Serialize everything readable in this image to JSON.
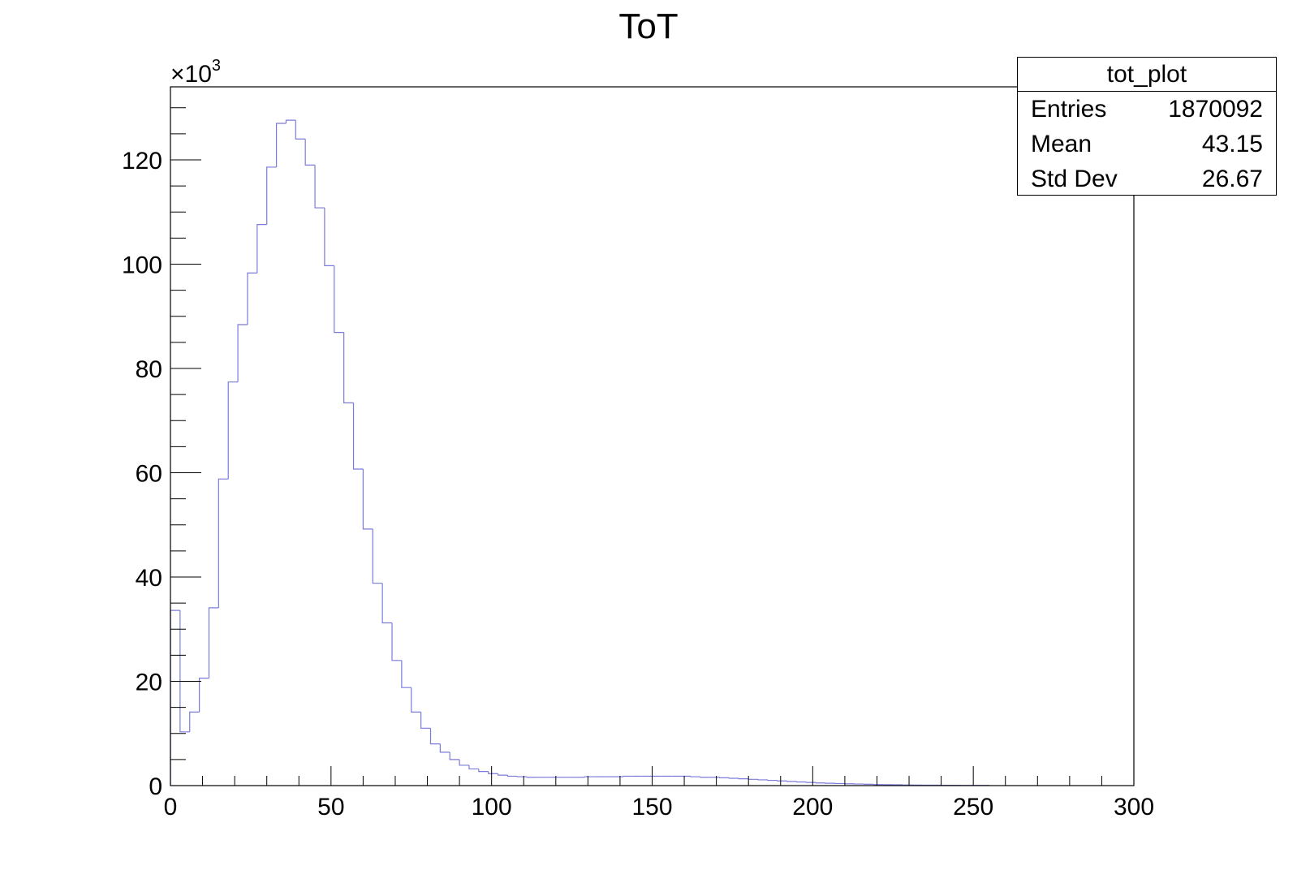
{
  "chart_data": {
    "type": "histogram",
    "title": "ToT",
    "xlabel": "",
    "ylabel": "",
    "y_multiplier_label": "×10",
    "y_multiplier_exponent": "3",
    "xlim": [
      0,
      300
    ],
    "ylim": [
      0,
      134
    ],
    "x_ticks": [
      0,
      50,
      100,
      150,
      200,
      250,
      300
    ],
    "y_ticks": [
      0,
      20,
      40,
      60,
      80,
      100,
      120
    ],
    "x_tick_labels": [
      "0",
      "50",
      "100",
      "150",
      "200",
      "250",
      "300"
    ],
    "y_tick_labels": [
      "0",
      "20",
      "40",
      "60",
      "80",
      "100",
      "120"
    ],
    "bin_width": 3,
    "bin_start": 0,
    "values": [
      33.6,
      10.3,
      14.1,
      20.6,
      34.1,
      58.8,
      77.4,
      88.4,
      98.3,
      107.6,
      118.6,
      127.0,
      127.6,
      124.0,
      119.0,
      110.8,
      99.7,
      86.9,
      73.4,
      60.7,
      49.2,
      38.8,
      31.2,
      24.0,
      18.8,
      14.1,
      11.0,
      8.0,
      6.4,
      5.0,
      3.9,
      3.2,
      2.7,
      2.3,
      2.0,
      1.8,
      1.7,
      1.6,
      1.6,
      1.6,
      1.6,
      1.6,
      1.6,
      1.7,
      1.7,
      1.7,
      1.7,
      1.8,
      1.8,
      1.8,
      1.8,
      1.8,
      1.8,
      1.8,
      1.7,
      1.6,
      1.6,
      1.5,
      1.4,
      1.3,
      1.2,
      1.1,
      1.0,
      0.9,
      0.8,
      0.7,
      0.6,
      0.5,
      0.45,
      0.4,
      0.35,
      0.3,
      0.25,
      0.2,
      0.18,
      0.15,
      0.12,
      0.1,
      0.09,
      0.08,
      0.07,
      0.06,
      0.05,
      0.05,
      0.04
    ],
    "line_color": "#7b7bdb",
    "legend": "stats box top-right",
    "grid": false,
    "stats": {
      "name": "tot_plot",
      "rows": [
        {
          "label": "Entries",
          "value": "1870092"
        },
        {
          "label": "Mean",
          "value": "43.15"
        },
        {
          "label": "Std Dev",
          "value": "26.67"
        }
      ]
    }
  }
}
